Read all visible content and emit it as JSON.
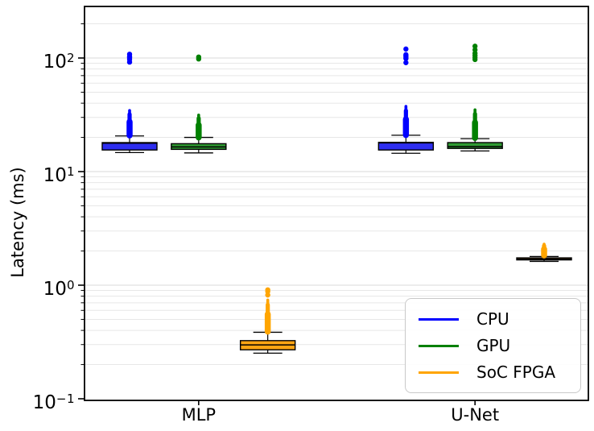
{
  "chart_data": {
    "type": "boxplot",
    "ylabel": "Latency (ms)",
    "yscale": "log",
    "ylim": [
      0.097,
      285
    ],
    "grid": "horizontal log minor+major, light gray",
    "legend_position": "lower right",
    "categories": [
      "MLP",
      "U-Net"
    ],
    "ytick_labels": [
      {
        "base": "10",
        "exp": "2",
        "value": 100
      },
      {
        "base": "10",
        "exp": "1",
        "value": 10
      },
      {
        "base": "10",
        "exp": "0",
        "value": 1
      },
      {
        "base": "10",
        "exp": "−1",
        "value": 0.1
      }
    ],
    "colors": {
      "box_edge": "#000000",
      "grid_minor": "#e7e7e7",
      "grid_major": "#d9d9d9",
      "legend_border": "#c9c9c9"
    },
    "series": [
      {
        "name": "CPU",
        "color": "#0000ff",
        "fill": "#2e2ef0",
        "boxes": [
          {
            "category": "MLP",
            "whislo": 14.7,
            "q1": 15.5,
            "med": 17.8,
            "q3": 18.0,
            "whishi": 20.6,
            "dense_outlier_range": [
              20.8,
              34.5
            ],
            "outliers": [
              92,
              97,
              100,
              103,
              108
            ]
          },
          {
            "category": "U-Net",
            "whislo": 14.5,
            "q1": 15.5,
            "med": 17.9,
            "q3": 18.1,
            "whishi": 20.9,
            "dense_outlier_range": [
              21.0,
              37.5
            ],
            "outliers": [
              91,
              99,
              102,
              105,
              107,
              120
            ]
          }
        ]
      },
      {
        "name": "GPU",
        "color": "#008000",
        "fill": "#2f9b32",
        "boxes": [
          {
            "category": "MLP",
            "whislo": 14.6,
            "q1": 15.7,
            "med": 16.5,
            "q3": 17.6,
            "whishi": 20.0,
            "dense_outlier_range": [
              20.0,
              31.5
            ],
            "outliers": [
              98,
              102
            ]
          },
          {
            "category": "U-Net",
            "whislo": 15.2,
            "q1": 16.0,
            "med": 16.6,
            "q3": 18.0,
            "whishi": 19.5,
            "dense_outlier_range": [
              19.8,
              35.0
            ],
            "outliers": [
              97,
              101,
              105,
              110,
              118,
              127
            ]
          }
        ]
      },
      {
        "name": "SoC FPGA",
        "color": "#ffa500",
        "fill": "#ffa513",
        "boxes": [
          {
            "category": "MLP",
            "whislo": 0.252,
            "q1": 0.27,
            "med": 0.298,
            "q3": 0.325,
            "whishi": 0.385,
            "dense_outlier_range": [
              0.39,
              0.74
            ],
            "outliers": [
              0.82,
              0.88,
              0.91
            ]
          },
          {
            "category": "U-Net",
            "whislo": 1.62,
            "q1": 1.67,
            "med": 1.7,
            "q3": 1.74,
            "whishi": 1.79,
            "dense_outlier_range": [
              1.83,
              2.3
            ],
            "outliers": []
          }
        ]
      }
    ]
  }
}
